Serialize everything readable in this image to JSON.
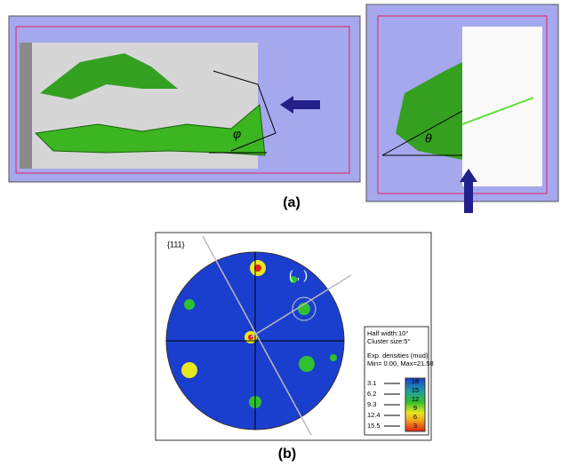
{
  "panel_a": {
    "label": "(a)",
    "angle_left": "φ",
    "angle_right": "θ"
  },
  "panel_b": {
    "label": "(b)",
    "pole_figure": "{111}",
    "annotation": "( ,  )",
    "legend": {
      "half_width": "Half width:10°",
      "cluster_size": "Cluster size:5°",
      "densities_title": "Exp. densities (mud)",
      "min_max": "Min= 0.00, Max=21.58",
      "levels": [
        "3.1",
        "6.2",
        "9.3",
        "12.4",
        "15.5"
      ],
      "colorbar_labels": [
        "3",
        "6",
        "9",
        "12",
        "15",
        "18"
      ]
    }
  }
}
